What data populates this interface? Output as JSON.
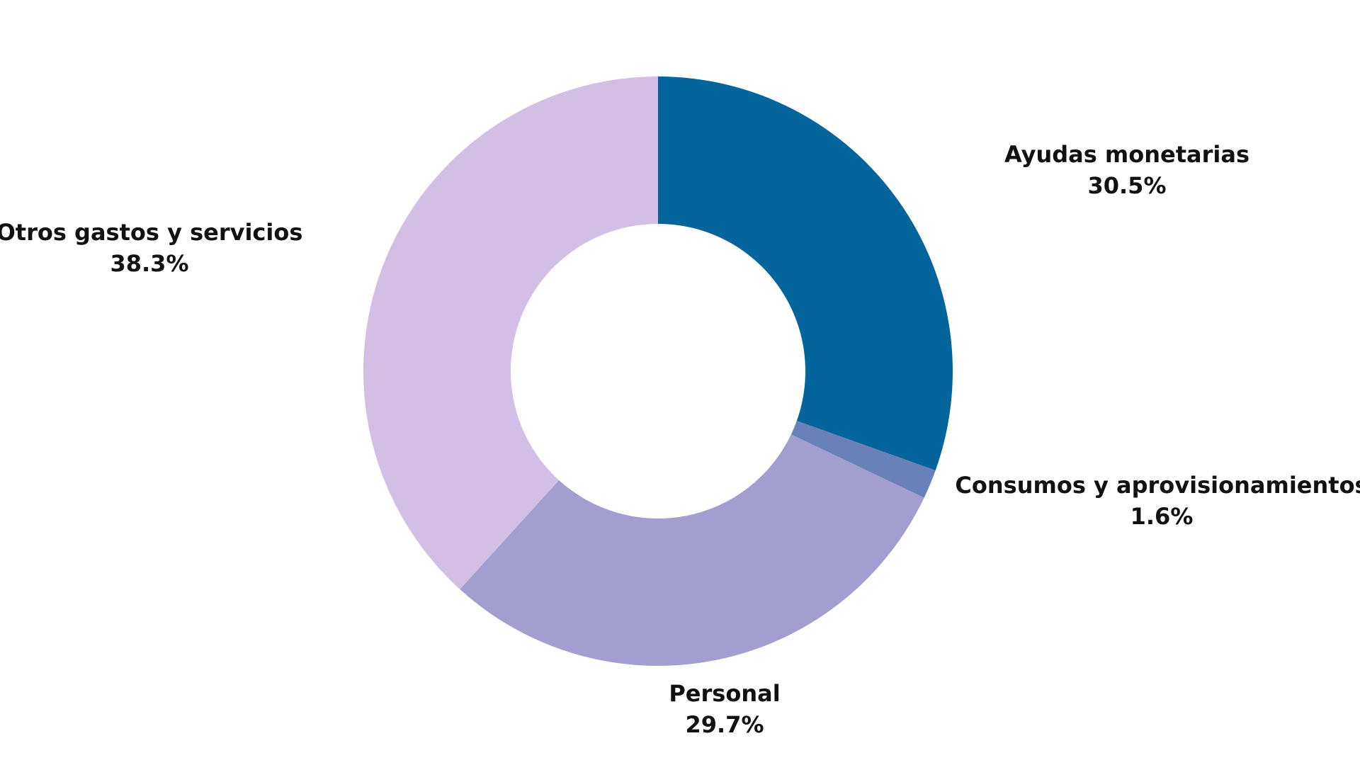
{
  "chart_data": {
    "type": "pie",
    "variant": "donut",
    "slices": [
      {
        "label": "Ayudas monetarias",
        "value": 30.5,
        "display": "30.5%",
        "color": "#04659c"
      },
      {
        "label": "Consumos y aprovisionamientos",
        "value": 1.6,
        "display": "1.6%",
        "color": "#6a80b9"
      },
      {
        "label": "Personal",
        "value": 29.7,
        "display": "29.7%",
        "color": "#a39ed0"
      },
      {
        "label": "Otros gastos y servicios",
        "value": 38.3,
        "display": "38.3%",
        "color": "#d3bee6"
      }
    ],
    "start": "12 o'clock",
    "direction": "clockwise",
    "legend": "none (labels next to slices)"
  }
}
